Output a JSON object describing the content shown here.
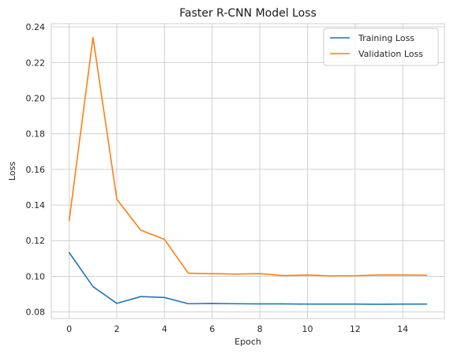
{
  "chart_data": {
    "type": "line",
    "title": "Faster R-CNN Model Loss",
    "xlabel": "Epoch",
    "ylabel": "Loss",
    "xlim": [
      -0.75,
      15.75
    ],
    "ylim": [
      0.0763,
      0.2418
    ],
    "xticks": [
      0,
      2,
      4,
      6,
      8,
      10,
      12,
      14
    ],
    "xtick_labels": [
      "0",
      "2",
      "4",
      "6",
      "8",
      "10",
      "12",
      "14"
    ],
    "yticks": [
      0.08,
      0.1,
      0.12,
      0.14,
      0.16,
      0.18,
      0.2,
      0.22,
      0.24
    ],
    "ytick_labels": [
      "0.08",
      "0.10",
      "0.12",
      "0.14",
      "0.16",
      "0.18",
      "0.20",
      "0.22",
      "0.24"
    ],
    "grid": true,
    "legend_position": "top-right",
    "x": [
      0,
      1,
      2,
      3,
      4,
      5,
      6,
      7,
      8,
      9,
      10,
      11,
      12,
      13,
      14,
      15
    ],
    "series": [
      {
        "name": "Training Loss",
        "color": "#1f77b4",
        "values": [
          0.1133,
          0.0942,
          0.0848,
          0.0886,
          0.0881,
          0.0846,
          0.0848,
          0.0846,
          0.0845,
          0.0845,
          0.0844,
          0.0844,
          0.0844,
          0.0843,
          0.0844,
          0.0844
        ]
      },
      {
        "name": "Validation Loss",
        "color": "#ff7f0e",
        "values": [
          0.1313,
          0.2341,
          0.1432,
          0.1259,
          0.1207,
          0.1017,
          0.1015,
          0.1012,
          0.1015,
          0.1004,
          0.1007,
          0.1002,
          0.1003,
          0.1007,
          0.1007,
          0.1006
        ]
      }
    ]
  }
}
